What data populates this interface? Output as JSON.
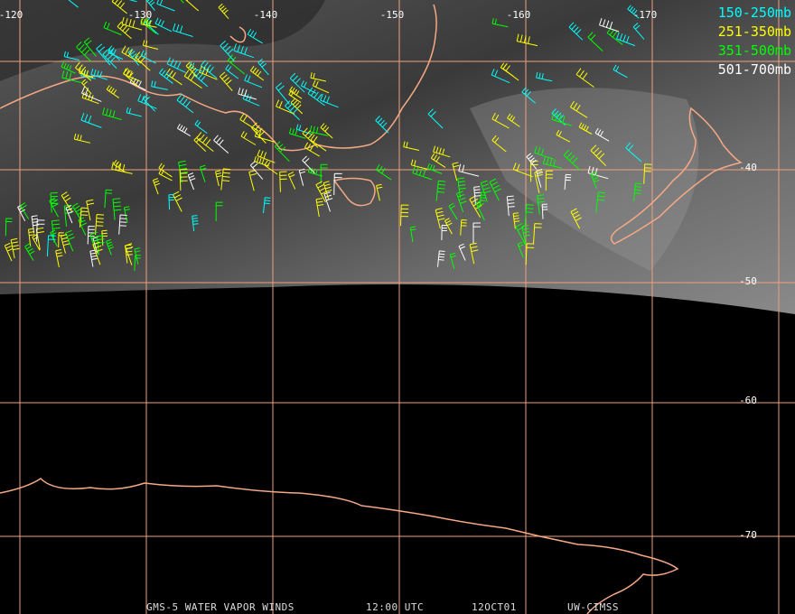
{
  "longitude_labels": [
    "-120",
    "-130",
    "-140",
    "-150",
    "-160",
    "-170"
  ],
  "latitude_labels": [
    "-40",
    "-50",
    "-60",
    "-70"
  ],
  "legend": [
    {
      "label": "150-250mb",
      "color": "#00ffff"
    },
    {
      "label": "251-350mb",
      "color": "#ffff00"
    },
    {
      "label": "351-500mb",
      "color": "#00ff00"
    },
    {
      "label": "501-700mb",
      "color": "#ffffff"
    }
  ],
  "footer": [
    "GMS-5 WATER VAPOR WINDS",
    "12:00 UTC",
    "12OCT01",
    "UW-CIMSS"
  ]
}
